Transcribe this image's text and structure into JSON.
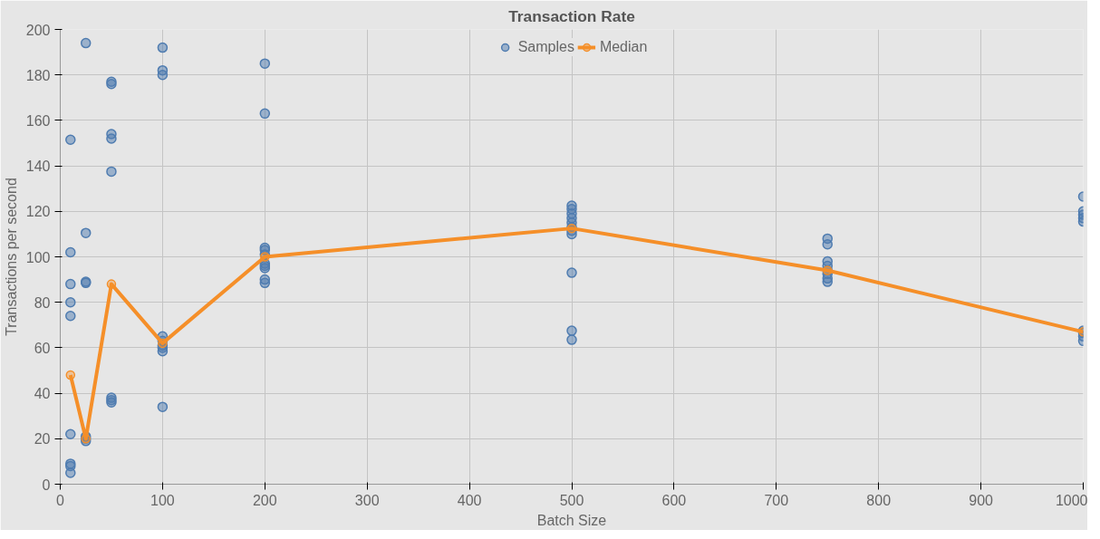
{
  "chart_data": {
    "type": "scatter",
    "title": "Transaction Rate",
    "xlabel": "Batch Size",
    "ylabel": "Transactions per second",
    "xlim": [
      0,
      1000
    ],
    "xticks": [
      0,
      100,
      200,
      300,
      400,
      500,
      600,
      700,
      800,
      900,
      1000
    ],
    "ylim": [
      0,
      200
    ],
    "yticks": [
      0,
      20,
      40,
      60,
      80,
      100,
      120,
      140,
      160,
      180,
      200
    ],
    "grid": true,
    "legend": "top",
    "marker": "circle",
    "series": [
      {
        "name": "Samples",
        "color": "#4f7cb0",
        "x": [
          10,
          10,
          10,
          10,
          10,
          10,
          10,
          10,
          10,
          25,
          25,
          25,
          25,
          25,
          25,
          25,
          50,
          50,
          50,
          50,
          50,
          50,
          50,
          50,
          100,
          100,
          100,
          100,
          100,
          100,
          100,
          100,
          100,
          200,
          200,
          200,
          200,
          200,
          200,
          200,
          200,
          200,
          200,
          500,
          500,
          500,
          500,
          500,
          500,
          500,
          500,
          500,
          500,
          500,
          750,
          750,
          750,
          750,
          750,
          750,
          750,
          750,
          1000,
          1000,
          1000,
          1000,
          1000,
          1000,
          1000,
          1000,
          1000
        ],
        "values": [
          151.5,
          102,
          88,
          80,
          74,
          22,
          9,
          8,
          5,
          194,
          110.5,
          89,
          88.5,
          21,
          20,
          19,
          177,
          176,
          154,
          152,
          137.5,
          38,
          37,
          36,
          192,
          182,
          180,
          65,
          63,
          61,
          60,
          58.5,
          34,
          185,
          163,
          104,
          103,
          101,
          97,
          96,
          95,
          90,
          88.5,
          122.5,
          121,
          119,
          117,
          115,
          113,
          111.5,
          110,
          93,
          67.5,
          63.5,
          108,
          105.5,
          98,
          96,
          94,
          92.5,
          90.5,
          89,
          126.5,
          120,
          118.5,
          117,
          115.5,
          67.5,
          66.5,
          65,
          63
        ]
      },
      {
        "name": "Median",
        "type": "line",
        "color": "#f58f29",
        "line_style": "solid",
        "x": [
          10,
          25,
          50,
          100,
          200,
          500,
          750,
          1000
        ],
        "values": [
          48,
          20,
          88,
          62,
          100,
          112.5,
          94,
          67
        ]
      }
    ]
  }
}
